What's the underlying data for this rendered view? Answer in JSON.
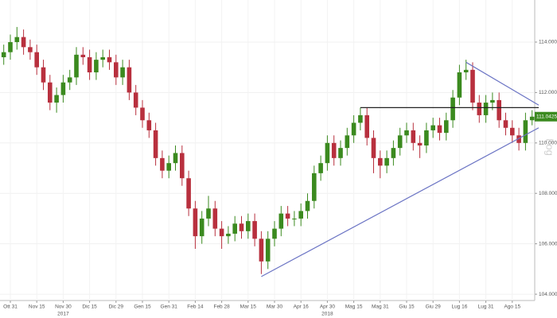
{
  "chart_data": {
    "type": "candlestick",
    "categories": [
      null,
      "Ott 31",
      null,
      null,
      null,
      "Nov 15",
      null,
      null,
      null,
      "Nov 30",
      null,
      null,
      null,
      "Dic 15",
      null,
      null,
      null,
      "Dic 29",
      null,
      null,
      null,
      "Gen 15",
      null,
      null,
      null,
      "Gen 31",
      null,
      null,
      null,
      "Feb 14",
      null,
      null,
      null,
      "Feb 28",
      null,
      null,
      null,
      "Mar 15",
      null,
      null,
      null,
      "Mar 30",
      null,
      null,
      null,
      "Apr 16",
      null,
      null,
      null,
      "Apr 30",
      null,
      null,
      null,
      "Mag 15",
      null,
      null,
      null,
      "Mag 31",
      null,
      null,
      null,
      "Giu 15",
      null,
      null,
      null,
      "Giu 29",
      null,
      null,
      null,
      "Lug 16",
      null,
      null,
      null,
      "Lug 31",
      null,
      null,
      null,
      "Ago 15",
      null,
      null,
      null
    ],
    "year_labels": [
      {
        "at": 9,
        "label": "2017"
      },
      {
        "at": 49,
        "label": "2018"
      }
    ],
    "open": [
      113.4,
      113.6,
      114.0,
      114.2,
      113.8,
      113.6,
      113.0,
      112.4,
      111.6,
      111.9,
      112.4,
      112.6,
      113.5,
      113.4,
      112.8,
      113.3,
      113.4,
      113.2,
      112.6,
      113.0,
      112.0,
      111.4,
      110.9,
      110.5,
      109.4,
      108.9,
      109.2,
      109.6,
      108.6,
      107.4,
      106.3,
      107.0,
      107.4,
      106.6,
      106.3,
      106.4,
      106.8,
      106.5,
      106.9,
      106.2,
      105.3,
      106.2,
      106.6,
      107.2,
      107.0,
      107.0,
      107.3,
      107.7,
      108.8,
      109.2,
      110.0,
      109.4,
      109.8,
      110.3,
      110.8,
      111.1,
      110.2,
      109.4,
      109.1,
      109.4,
      109.8,
      110.3,
      110.5,
      110.0,
      109.9,
      110.5,
      110.7,
      110.4,
      110.9,
      111.8,
      112.8,
      112.9,
      111.6,
      111.1,
      111.6,
      111.7,
      110.9,
      110.6,
      110.3,
      110.0,
      110.9
    ],
    "high": [
      113.9,
      114.3,
      114.6,
      114.5,
      114.1,
      113.9,
      113.3,
      112.7,
      112.2,
      112.7,
      112.9,
      113.8,
      113.8,
      113.7,
      113.6,
      113.7,
      113.7,
      113.5,
      113.3,
      113.3,
      112.3,
      111.7,
      111.2,
      110.8,
      109.7,
      109.5,
      109.9,
      109.9,
      108.9,
      107.7,
      107.3,
      107.9,
      107.7,
      106.9,
      106.7,
      107.1,
      107.1,
      107.2,
      107.2,
      106.5,
      106.5,
      106.9,
      107.5,
      107.5,
      107.3,
      107.6,
      108.0,
      109.1,
      109.5,
      110.3,
      110.3,
      110.1,
      110.6,
      111.1,
      111.4,
      111.4,
      110.5,
      109.7,
      109.7,
      110.1,
      110.6,
      110.8,
      110.8,
      110.3,
      110.8,
      111.0,
      111.0,
      111.2,
      112.1,
      113.1,
      113.3,
      113.2,
      111.9,
      111.9,
      112.0,
      112.0,
      111.2,
      110.9,
      110.6,
      111.2,
      111.3
    ],
    "low": [
      113.1,
      113.3,
      113.7,
      113.5,
      113.3,
      112.7,
      112.1,
      111.3,
      111.2,
      111.6,
      112.1,
      112.3,
      113.1,
      112.5,
      112.5,
      113.0,
      112.9,
      112.3,
      112.3,
      111.7,
      111.1,
      110.6,
      110.2,
      109.1,
      108.6,
      108.6,
      108.9,
      108.3,
      107.1,
      105.8,
      106.0,
      106.7,
      106.3,
      105.8,
      106.0,
      106.1,
      106.2,
      106.2,
      105.9,
      104.8,
      105.0,
      105.9,
      106.3,
      106.7,
      106.7,
      106.7,
      107.0,
      107.4,
      108.5,
      108.9,
      109.1,
      109.1,
      109.5,
      110.0,
      110.5,
      109.9,
      108.8,
      108.6,
      108.8,
      109.1,
      109.5,
      110.0,
      109.7,
      109.4,
      109.6,
      110.2,
      110.1,
      110.1,
      110.6,
      111.5,
      112.5,
      111.3,
      110.8,
      110.8,
      111.3,
      110.6,
      110.3,
      110.0,
      109.7,
      109.7,
      110.7
    ],
    "close": [
      113.6,
      114.0,
      114.2,
      113.8,
      113.6,
      113.0,
      112.4,
      111.6,
      111.9,
      112.4,
      112.6,
      113.5,
      113.4,
      112.8,
      113.3,
      113.4,
      113.2,
      112.6,
      113.0,
      112.0,
      111.4,
      110.9,
      110.5,
      109.4,
      108.9,
      109.2,
      109.6,
      108.6,
      107.4,
      106.3,
      107.0,
      107.4,
      106.6,
      106.3,
      106.4,
      106.8,
      106.5,
      106.9,
      106.2,
      105.3,
      106.2,
      106.6,
      107.2,
      107.0,
      107.0,
      107.3,
      107.7,
      108.8,
      109.2,
      110.0,
      109.4,
      109.8,
      110.3,
      110.8,
      111.1,
      110.2,
      109.4,
      109.1,
      109.4,
      109.8,
      110.3,
      110.5,
      110.0,
      109.9,
      110.5,
      110.7,
      110.4,
      110.9,
      111.8,
      112.8,
      112.9,
      111.6,
      111.1,
      111.6,
      111.7,
      110.9,
      110.6,
      110.3,
      110.0,
      110.9,
      111.0425
    ],
    "up_color": "#3b8a1f",
    "down_color": "#b8303e",
    "last_price": 111.0425,
    "trendlines": [
      {
        "x": [
          54,
          81
        ],
        "y": [
          111.4,
          111.4
        ],
        "color": "#222222"
      },
      {
        "x": [
          70,
          81
        ],
        "y": [
          113.2,
          111.5
        ],
        "color": "#6b74c4"
      },
      {
        "x": [
          39,
          81
        ],
        "y": [
          104.7,
          110.6
        ],
        "color": "#6b74c4"
      }
    ],
    "scale_label": "Log",
    "ylim": [
      103.75,
      115.67
    ],
    "yticks": [
      {
        "value": 104,
        "label": "104.0000"
      },
      {
        "value": 106,
        "label": "106.0000"
      },
      {
        "value": 108,
        "label": "108.0000"
      },
      {
        "value": 110,
        "label": "110.0000"
      },
      {
        "value": 112,
        "label": "112.0000"
      },
      {
        "value": 114,
        "label": "114.0000"
      }
    ],
    "grid": true
  }
}
